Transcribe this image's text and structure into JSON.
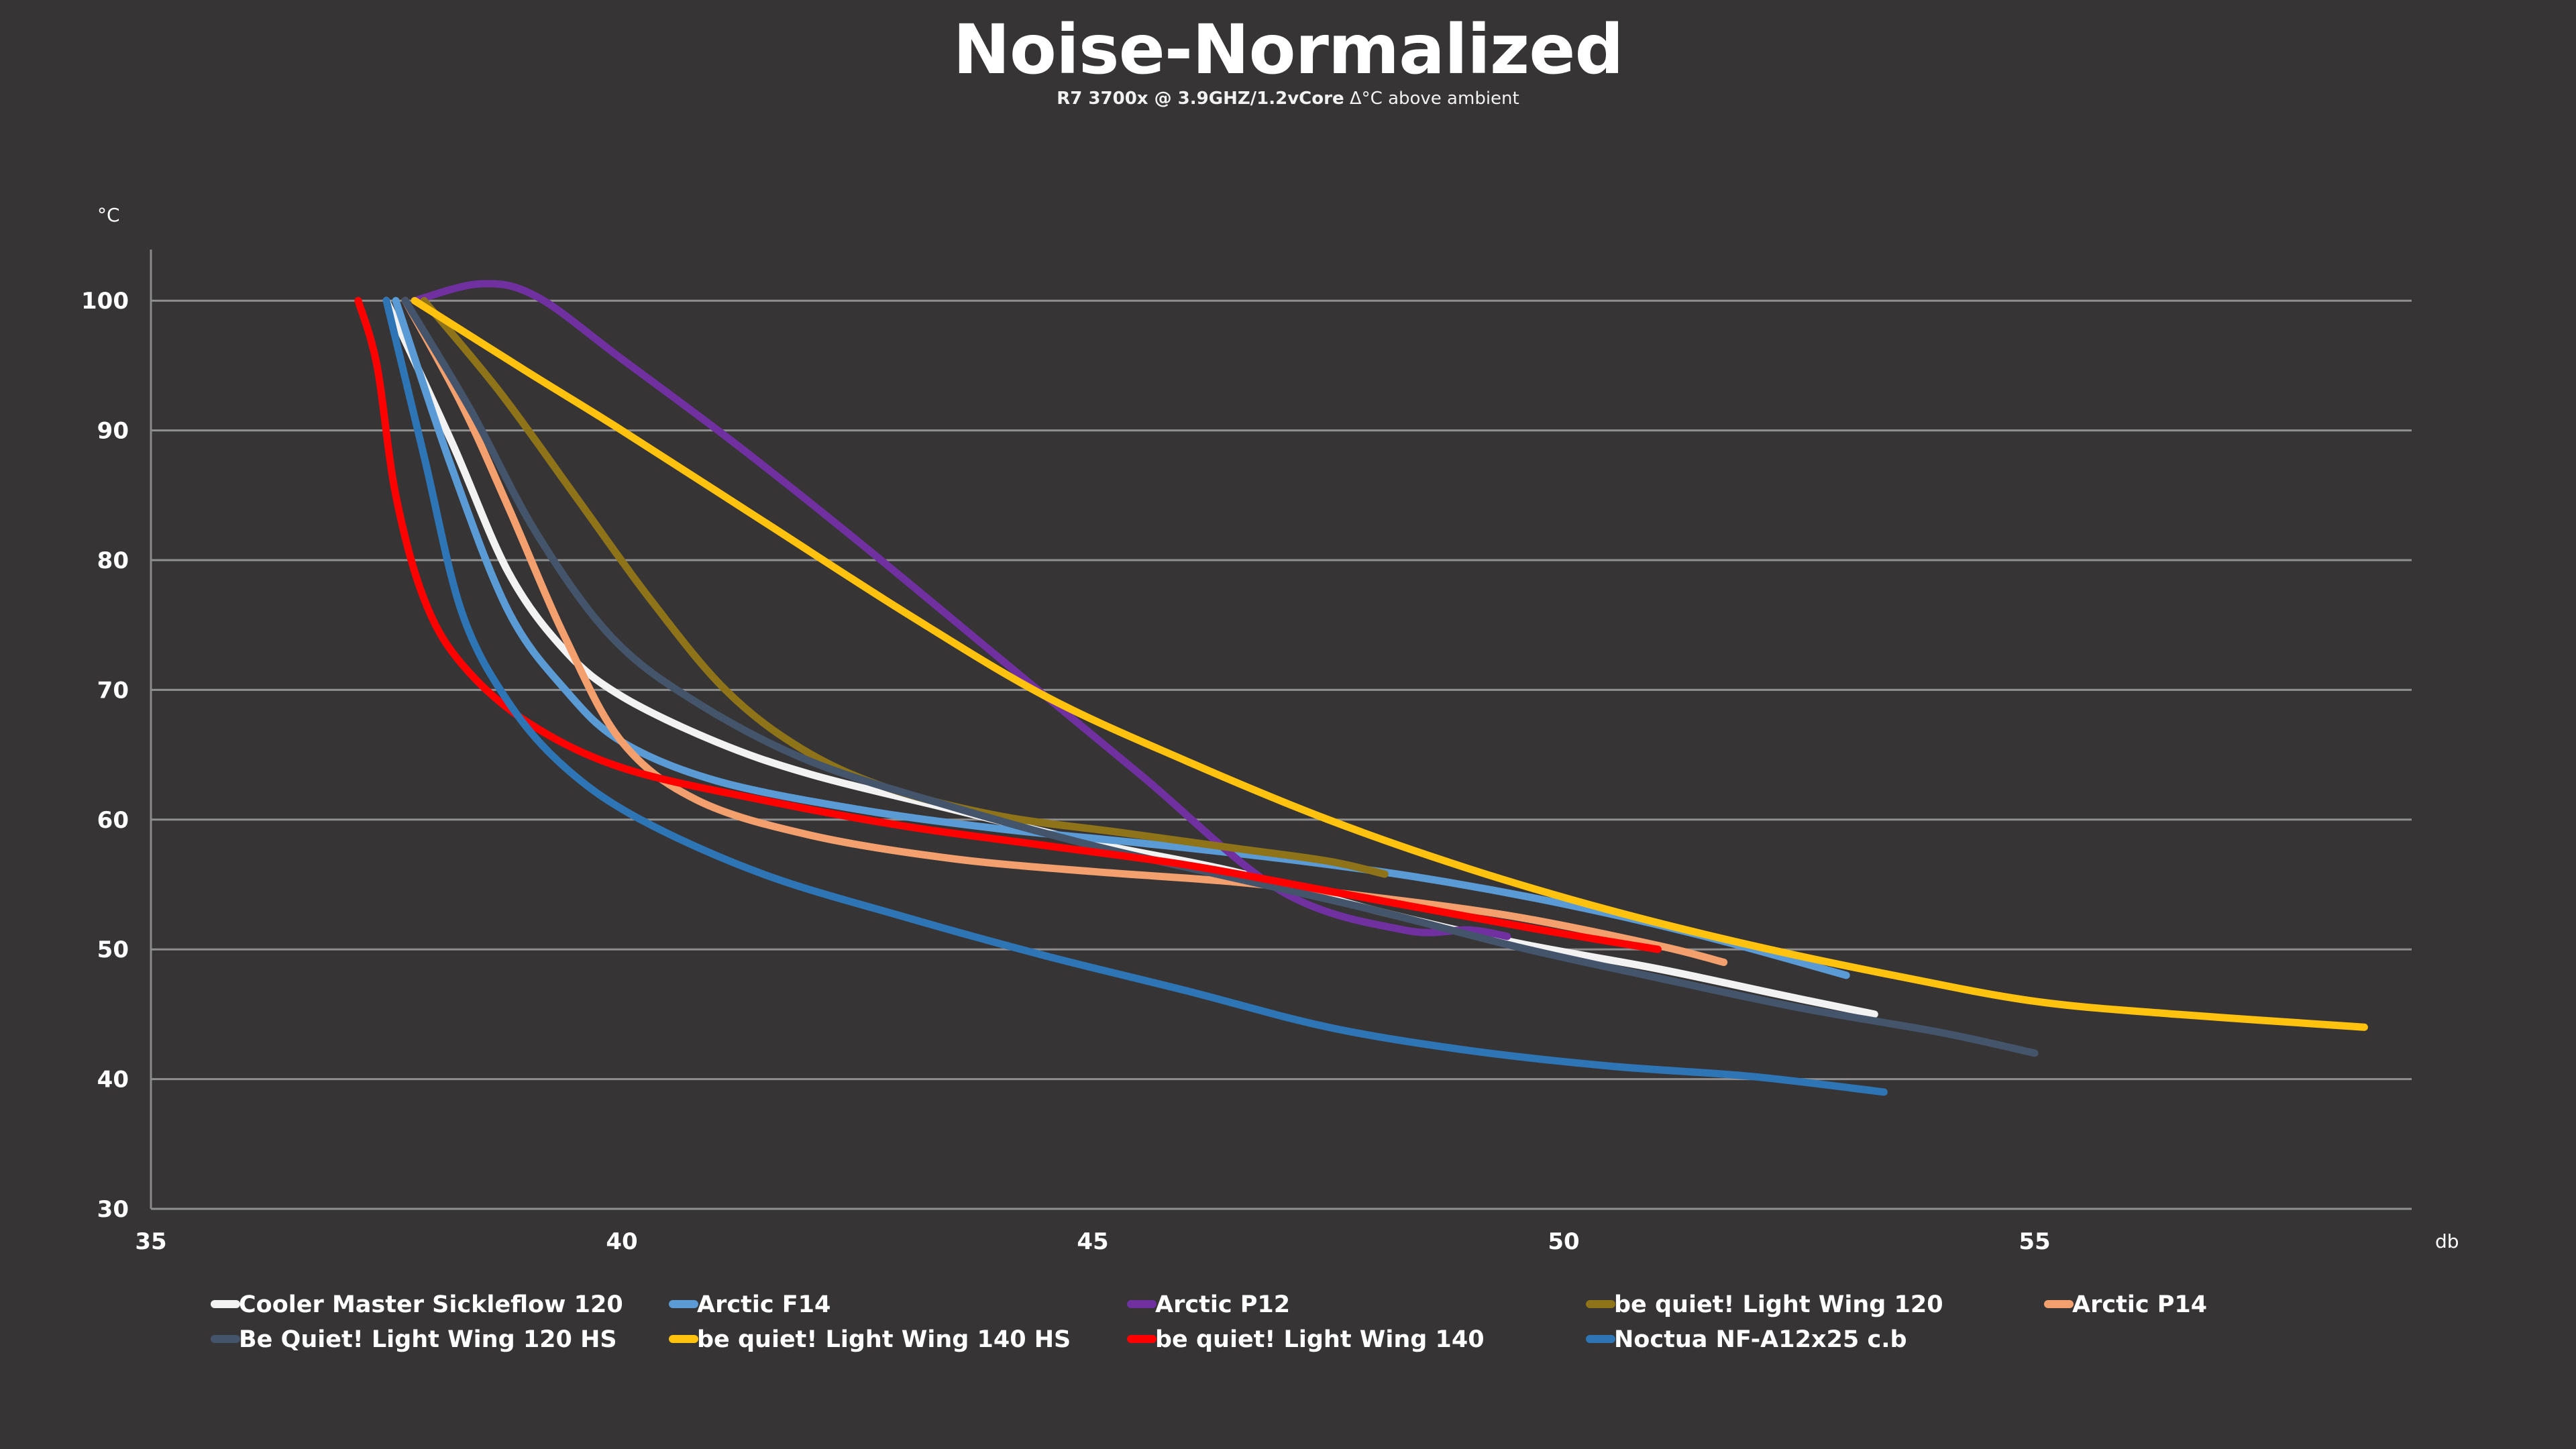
{
  "chart_data": {
    "type": "line",
    "title": "Noise-Normalized",
    "subtitle_bold": "R7 3700x @ 3.9GHZ/1.2vCore",
    "subtitle_rest": "Δ°C above ambient",
    "xlabel": "db",
    "ylabel": "°C",
    "xlim": [
      35,
      59
    ],
    "ylim": [
      30,
      104
    ],
    "xticks": [
      35,
      40,
      45,
      50,
      55
    ],
    "yticks": [
      30,
      40,
      50,
      60,
      70,
      80,
      90,
      100
    ],
    "grid": true,
    "legend_position": "bottom",
    "series": [
      {
        "name": "Cooler Master Sickleflow 120",
        "color": "#f2f2f2",
        "x": [
          37.5,
          38.2,
          38.8,
          39.4,
          40.0,
          41.0,
          42.0,
          43.5,
          45.0,
          46.5,
          48.0,
          49.5,
          51.0,
          52.3,
          53.3
        ],
        "y": [
          100,
          89,
          79,
          73,
          69.5,
          66,
          63.5,
          60.8,
          58.2,
          56,
          53,
          50.5,
          48.5,
          46.5,
          45
        ]
      },
      {
        "name": "Arctic F14",
        "color": "#5b9bd5",
        "x": [
          37.6,
          38.2,
          38.8,
          39.4,
          40.0,
          41.0,
          42.5,
          44.0,
          45.5,
          47.0,
          48.5,
          50.0,
          51.5,
          53.0
        ],
        "y": [
          100,
          87,
          76,
          70,
          66,
          63,
          60.8,
          59.3,
          58.2,
          57,
          55.5,
          53.5,
          51,
          48
        ]
      },
      {
        "name": "Arctic P12",
        "color": "#7030a0",
        "x": [
          37.8,
          38.5,
          39.1,
          40.0,
          41.2,
          42.5,
          44.0,
          45.5,
          47.0,
          48.3,
          49.0,
          49.4
        ],
        "y": [
          100,
          101.3,
          100.3,
          95.5,
          89,
          81.5,
          72.5,
          63.5,
          54.5,
          51.5,
          51.5,
          51
        ]
      },
      {
        "name": "be quiet! Light Wing 120",
        "color": "#8f7318",
        "x": [
          37.9,
          38.7,
          39.5,
          40.3,
          41.1,
          41.9,
          42.8,
          44.0,
          45.3,
          46.5,
          47.5,
          48.1
        ],
        "y": [
          100,
          93,
          85,
          77,
          70,
          65.5,
          62.5,
          60.3,
          59,
          57.8,
          56.8,
          55.8
        ]
      },
      {
        "name": "Arctic P14",
        "color": "#f4a06e",
        "x": [
          37.7,
          38.3,
          38.8,
          39.4,
          40.0,
          40.8,
          42.0,
          43.5,
          45.0,
          46.5,
          48.0,
          49.5,
          51.0,
          51.7
        ],
        "y": [
          100,
          92,
          84,
          74,
          66,
          61.5,
          58.8,
          57,
          56,
          55.2,
          54,
          52.5,
          50.3,
          49
        ]
      },
      {
        "name": "Be Quiet! Light Wing 120 HS",
        "color": "#44546a",
        "x": [
          37.7,
          38.4,
          39.1,
          39.9,
          40.8,
          42.0,
          43.5,
          45.0,
          46.5,
          48.0,
          49.5,
          51.0,
          52.5,
          54.0,
          55.0
        ],
        "y": [
          100,
          91.5,
          82,
          74,
          69,
          64.5,
          61,
          58,
          55.5,
          53,
          50.2,
          47.8,
          45.5,
          43.6,
          42
        ]
      },
      {
        "name": "be quiet! Light Wing 140 HS",
        "color": "#ffc20e",
        "x": [
          37.8,
          39.0,
          40.0,
          41.5,
          43.0,
          44.5,
          46.0,
          47.5,
          49.0,
          50.5,
          52.0,
          53.5,
          55.0,
          56.5,
          58.5
        ],
        "y": [
          100,
          94.5,
          90,
          83,
          76,
          69.5,
          64.5,
          60,
          56.2,
          53,
          50.3,
          48,
          46,
          45,
          44
        ]
      },
      {
        "name": "be quiet! Light Wing 140",
        "color": "#ff0000",
        "x": [
          37.2,
          37.4,
          37.6,
          37.9,
          38.3,
          39.0,
          40.0,
          41.5,
          43.0,
          44.5,
          46.0,
          47.5,
          49.0,
          50.0,
          51.0
        ],
        "y": [
          100,
          95,
          85,
          77,
          72,
          67.5,
          64,
          61.5,
          59.5,
          58,
          56.5,
          54.5,
          52.5,
          51.2,
          50
        ]
      },
      {
        "name": "Noctua NF-A12x25 c.b",
        "color": "#2e75b6",
        "x": [
          37.5,
          37.9,
          38.3,
          38.8,
          39.4,
          40.2,
          41.5,
          43.0,
          44.5,
          46.0,
          47.5,
          49.0,
          50.5,
          52.0,
          53.4
        ],
        "y": [
          100,
          88,
          76,
          69,
          64,
          60,
          55.8,
          52.5,
          49.5,
          46.8,
          44,
          42.2,
          41,
          40.2,
          39
        ]
      }
    ]
  }
}
